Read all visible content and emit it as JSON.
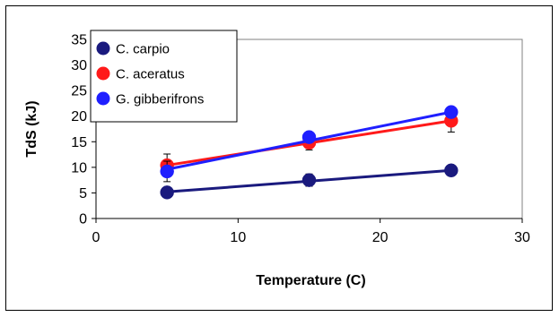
{
  "chart_data": {
    "type": "scatter",
    "title": "",
    "xlabel": "Temperature (C)",
    "ylabel": "TdS (kJ)",
    "xlim": [
      0,
      30
    ],
    "ylim": [
      0,
      35
    ],
    "xticks": [
      0,
      10,
      20,
      30
    ],
    "yticks": [
      0,
      5,
      10,
      15,
      20,
      25,
      30,
      35
    ],
    "grid": false,
    "legend_position": "top-left",
    "series": [
      {
        "name": "C. carpio",
        "color": "#1a1a7e",
        "x": [
          5,
          15,
          25
        ],
        "y": [
          5.1,
          7.5,
          9.4
        ],
        "error": [
          0.6,
          1.2,
          0.8
        ],
        "trend": [
          5.2,
          9.4
        ]
      },
      {
        "name": "C. aceratus",
        "color": "#ff1a1a",
        "x": [
          5,
          15,
          25
        ],
        "y": [
          10.4,
          14.8,
          19.1
        ],
        "error": [
          2.2,
          1.4,
          2.2
        ],
        "trend": [
          10.4,
          19.1
        ]
      },
      {
        "name": "G. gibberifrons",
        "color": "#1f1fff",
        "x": [
          5,
          15,
          25
        ],
        "y": [
          9.2,
          15.9,
          20.8
        ],
        "error": [
          2.0,
          1.0,
          1.0
        ],
        "trend": [
          9.6,
          20.8
        ]
      }
    ]
  }
}
